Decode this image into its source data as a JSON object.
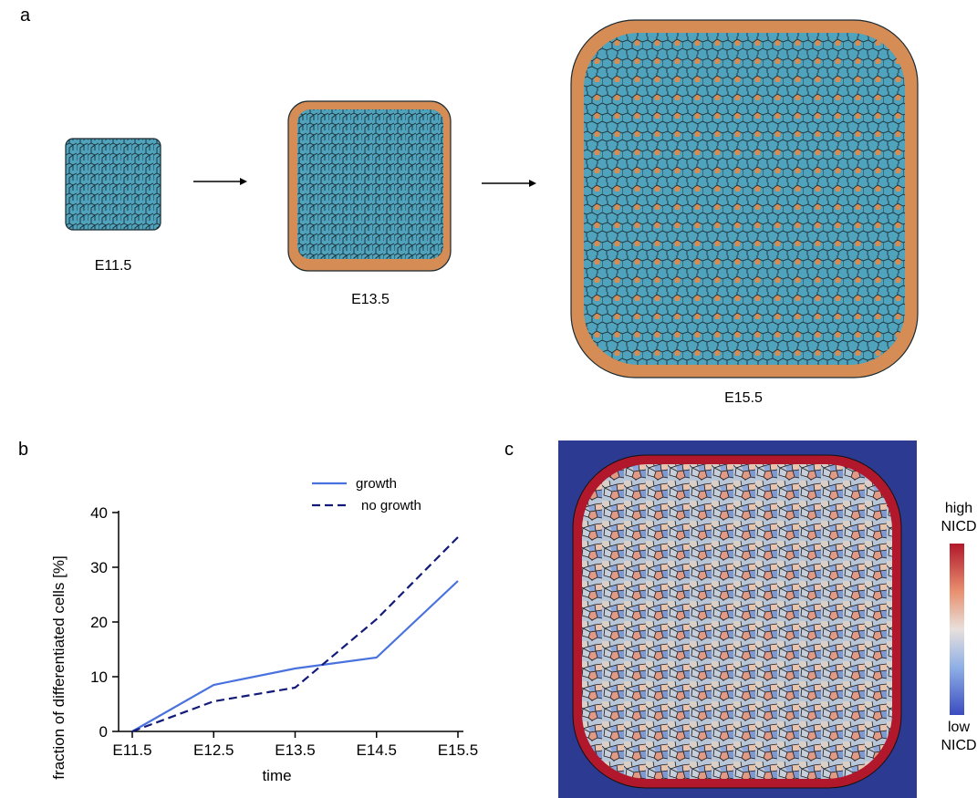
{
  "panel_a": {
    "letter": "a",
    "stages": [
      "E11.5",
      "E13.5",
      "E15.5"
    ]
  },
  "panel_b": {
    "letter": "b"
  },
  "panel_c": {
    "letter": "c",
    "colorbar_high": "high\nNICD",
    "colorbar_low": "low\nNICD"
  },
  "colors": {
    "cell_core": "#4fa3bd",
    "cell_edge_differentiated": "#d68c55",
    "growth_line": "#4a72de",
    "no_growth_line": "#121a7a",
    "heatmap_background": "#2c3a91",
    "colorbar_high": "#b2182b",
    "colorbar_low": "#3b4cc0"
  },
  "chart_data": {
    "type": "line",
    "categories": [
      "E11.5",
      "E12.5",
      "E13.5",
      "E14.5",
      "E15.5"
    ],
    "series": [
      {
        "name": "growth",
        "values": [
          0,
          8.5,
          11.5,
          13.5,
          27.5
        ],
        "style": "solid"
      },
      {
        "name": "no growth",
        "values": [
          0,
          5.5,
          8,
          20.5,
          35.5
        ],
        "style": "dashed"
      }
    ],
    "xlabel": "time",
    "ylabel": "fraction of differentiated cells  [%]",
    "ylim": [
      0,
      40
    ],
    "yticks": [
      0,
      10,
      20,
      30,
      40
    ],
    "grid": false,
    "legend": "top-right"
  }
}
